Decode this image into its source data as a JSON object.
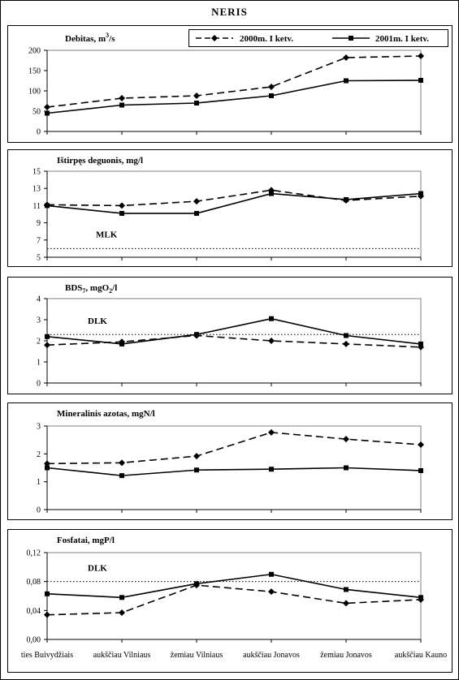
{
  "main_title": "NERIS",
  "legend": {
    "series_2000": "2000m. I ketv.",
    "series_2001": "2001m. I ketv."
  },
  "colors": {
    "line": "#000000",
    "reference_line": "#000000"
  },
  "chart_data": [
    {
      "type": "line",
      "title": "Debitas, m³/s",
      "title_prefix": "Debitas, m",
      "title_superscript": "3",
      "title_suffix": "/s",
      "categories": [
        "ties Buivydžiais",
        "aukščiau Vilniaus",
        "žemiau Vilniaus",
        "aukščiau Jonavos",
        "žemiau Jonavos",
        "aukščiau Kauno"
      ],
      "ylim": [
        0,
        200
      ],
      "yticks": [
        "0",
        "50",
        "100",
        "150",
        "200"
      ],
      "ytick_values": [
        0,
        50,
        100,
        150,
        200
      ],
      "series": [
        {
          "name": "2000m. I ketv.",
          "style": "dashed",
          "marker": "diamond",
          "values": [
            60,
            82,
            88,
            110,
            182,
            186
          ]
        },
        {
          "name": "2001m. I ketv.",
          "style": "solid",
          "marker": "square",
          "values": [
            45,
            65,
            70,
            88,
            125,
            126
          ]
        }
      ],
      "reference_line": null,
      "grid": false,
      "legend_position": "top-right"
    },
    {
      "type": "line",
      "title": "Ištirpęs deguonis, mg/l",
      "categories": [
        "ties Buivydžiais",
        "aukščiau Vilniaus",
        "žemiau Vilniaus",
        "aukščiau Jonavos",
        "žemiau Jonavos",
        "aukščiau Kauno"
      ],
      "ylim": [
        5,
        15
      ],
      "yticks": [
        "5",
        "7",
        "9",
        "11",
        "13",
        "15"
      ],
      "ytick_values": [
        5,
        7,
        9,
        11,
        13,
        15
      ],
      "series": [
        {
          "name": "2000m. I ketv.",
          "style": "dashed",
          "marker": "diamond",
          "values": [
            11.1,
            11.0,
            11.5,
            12.8,
            11.6,
            12.1
          ]
        },
        {
          "name": "2001m. I ketv.",
          "style": "solid",
          "marker": "square",
          "values": [
            11.0,
            10.1,
            10.1,
            12.4,
            11.7,
            12.4
          ]
        }
      ],
      "reference_line": {
        "label": "MLK",
        "value": 6
      },
      "grid": false
    },
    {
      "type": "line",
      "title": "BDS₇, mgO₂/l",
      "title_prefix": "BDS",
      "title_sub1": "7",
      "title_mid": ", mgO",
      "title_sub2": "2",
      "title_suffix": "/l",
      "categories": [
        "ties Buivydžiais",
        "aukščiau Vilniaus",
        "žemiau Vilniaus",
        "aukščiau Jonavos",
        "žemiau Jonavos",
        "aukščiau Kauno"
      ],
      "ylim": [
        0,
        4
      ],
      "yticks": [
        "0",
        "1",
        "2",
        "3",
        "4"
      ],
      "ytick_values": [
        0,
        1,
        2,
        3,
        4
      ],
      "series": [
        {
          "name": "2000m. I ketv.",
          "style": "dashed",
          "marker": "diamond",
          "values": [
            1.8,
            1.95,
            2.25,
            2.0,
            1.85,
            1.7
          ]
        },
        {
          "name": "2001m. I ketv.",
          "style": "solid",
          "marker": "square",
          "values": [
            2.2,
            1.85,
            2.3,
            3.05,
            2.25,
            1.85
          ]
        }
      ],
      "reference_line": {
        "label": "DLK",
        "value": 2.3
      },
      "grid": false
    },
    {
      "type": "line",
      "title": "Mineralinis azotas, mgN/l",
      "categories": [
        "ties Buivydžiais",
        "aukščiau Vilniaus",
        "žemiau Vilniaus",
        "aukščiau Jonavos",
        "žemiau Jonavos",
        "aukščiau Kauno"
      ],
      "ylim": [
        0,
        3
      ],
      "yticks": [
        "0",
        "1",
        "2",
        "3"
      ],
      "ytick_values": [
        0,
        1,
        2,
        3
      ],
      "series": [
        {
          "name": "2000m. I ketv.",
          "style": "dashed",
          "marker": "diamond",
          "values": [
            1.65,
            1.68,
            1.92,
            2.77,
            2.53,
            2.33
          ]
        },
        {
          "name": "2001m. I ketv.",
          "style": "solid",
          "marker": "square",
          "values": [
            1.5,
            1.22,
            1.42,
            1.45,
            1.5,
            1.4
          ]
        }
      ],
      "reference_line": null,
      "grid": false
    },
    {
      "type": "line",
      "title": "Fosfatai, mgP/l",
      "categories": [
        "ties Buivydžiais",
        "aukščiau Vilniaus",
        "žemiau Vilniaus",
        "aukščiau Jonavos",
        "žemiau Jonavos",
        "aukščiau Kauno"
      ],
      "xticks": [
        "ties Buivydžiais",
        "aukščiau Vilniaus",
        "žemiau Vilniaus",
        "aukščiau Jonavos",
        "žemiau Jonavos",
        "aukščiau Kauno"
      ],
      "ylim": [
        0,
        0.12
      ],
      "yticks": [
        "0,00",
        "0,04",
        "0,08",
        "0,12"
      ],
      "ytick_values": [
        0,
        0.04,
        0.08,
        0.12
      ],
      "series": [
        {
          "name": "2000m. I ketv.",
          "style": "dashed",
          "marker": "diamond",
          "values": [
            0.034,
            0.037,
            0.075,
            0.066,
            0.05,
            0.055
          ]
        },
        {
          "name": "2001m. I ketv.",
          "style": "solid",
          "marker": "square",
          "values": [
            0.063,
            0.058,
            0.077,
            0.09,
            0.069,
            0.058
          ]
        }
      ],
      "reference_line": {
        "label": "DLK",
        "value": 0.08
      },
      "grid": false
    }
  ]
}
